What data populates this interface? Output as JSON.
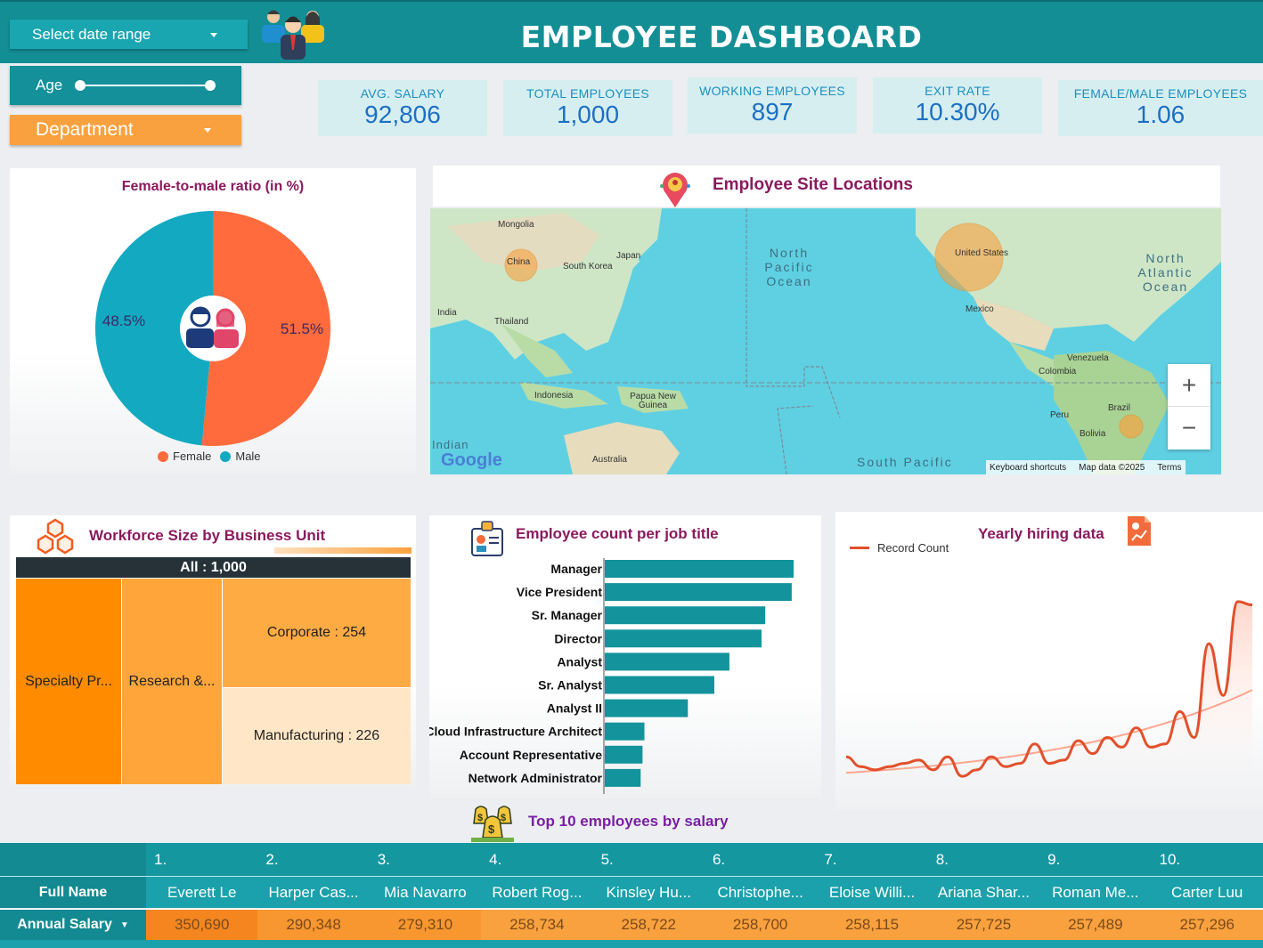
{
  "header": {
    "title": "EMPLOYEE DASHBOARD",
    "date_range_label": "Select date range",
    "age_label": "Age",
    "department_label": "Department"
  },
  "kpis": [
    {
      "label": "AVG. SALARY",
      "value": "92,806"
    },
    {
      "label": "TOTAL EMPLOYEES",
      "value": "1,000"
    },
    {
      "label": "WORKING EMPLOYEES",
      "value": "897"
    },
    {
      "label": "EXIT RATE",
      "value": "10.30%"
    },
    {
      "label": "FEMALE/MALE EMPLOYEES",
      "value": "1.06"
    }
  ],
  "pie": {
    "title": "Female-to-male ratio (in %)",
    "legend_female": "Female",
    "legend_male": "Male",
    "female_label": "51.5%",
    "male_label": "48.5%"
  },
  "map": {
    "title": "Employee Site Locations",
    "labels": {
      "mongolia": "Mongolia",
      "china": "China",
      "south_korea": "South Korea",
      "japan": "Japan",
      "india": "India",
      "thailand": "Thailand",
      "indonesia": "Indonesia",
      "png": "Papua New Guinea",
      "australia": "Australia",
      "north_pacific": "North Pacific Ocean",
      "north_atlantic": "North Atlantic Ocean",
      "united_states": "United States",
      "mexico": "Mexico",
      "venezuela": "Venezuela",
      "colombia": "Colombia",
      "peru": "Peru",
      "brazil": "Brazil",
      "bolivia": "Bolivia",
      "south_pacific": "South Pacific",
      "indian": "Indian",
      "google": "Google"
    },
    "zoom_in": "+",
    "zoom_out": "−",
    "attribution": {
      "shortcuts": "Keyboard shortcuts",
      "data": "Map data ©2025",
      "terms": "Terms"
    }
  },
  "treemap": {
    "title": "Workforce Size by Business Unit",
    "root": "All : 1,000",
    "units": {
      "specialty": "Specialty Pr...",
      "research": "Research &...",
      "corporate": "Corporate : 254",
      "manufacturing": "Manufacturing : 226"
    }
  },
  "job_chart": {
    "title": "Employee count per job title"
  },
  "hiring": {
    "title": "Yearly hiring data",
    "legend": "Record Count"
  },
  "top10": {
    "title": "Top 10 employees by salary",
    "row_name_label": "Full Name",
    "row_salary_label": "Annual Salary",
    "ranks": [
      "1.",
      "2.",
      "3.",
      "4.",
      "5.",
      "6.",
      "7.",
      "8.",
      "9.",
      "10."
    ],
    "names": [
      "Everett Le",
      "Harper Cas...",
      "Mia Navarro",
      "Robert Rog...",
      "Kinsley Hu...",
      "Christophe...",
      "Eloise Willi...",
      "Ariana Shar...",
      "Roman Me...",
      "Carter Luu"
    ],
    "salaries": [
      "350,690",
      "290,348",
      "279,310",
      "258,734",
      "258,722",
      "258,700",
      "258,115",
      "257,725",
      "257,489",
      "257,296"
    ]
  },
  "colors": {
    "teal": "#138e95",
    "orange": "#f9a13e",
    "female": "#ff6b3d",
    "male": "#13a9c1",
    "bar": "#13939b",
    "line": "#e2502b"
  },
  "chart_data": [
    {
      "type": "pie",
      "title": "Female-to-male ratio (in %)",
      "categories": [
        "Female",
        "Male"
      ],
      "values": [
        51.5,
        48.5
      ]
    },
    {
      "type": "bar",
      "title": "Employee count per job title",
      "orientation": "horizontal",
      "categories": [
        "Manager",
        "Vice President",
        "Sr. Manager",
        "Director",
        "Analyst",
        "Sr. Analyst",
        "Analyst II",
        "Cloud Infrastructure Architect",
        "Account Representative",
        "Network Administrator"
      ],
      "values": [
        100,
        99,
        85,
        83,
        66,
        58,
        44,
        21,
        20,
        19
      ]
    },
    {
      "type": "line",
      "title": "Yearly hiring data",
      "series": [
        {
          "name": "Record Count",
          "values": [
            9,
            6,
            5,
            6,
            7,
            8,
            5,
            9,
            3,
            5,
            9,
            6,
            7,
            13,
            7,
            8,
            14,
            10,
            15,
            12,
            18,
            12,
            13,
            23,
            15,
            44,
            28,
            57,
            56
          ]
        }
      ],
      "trendline": true
    }
  ]
}
